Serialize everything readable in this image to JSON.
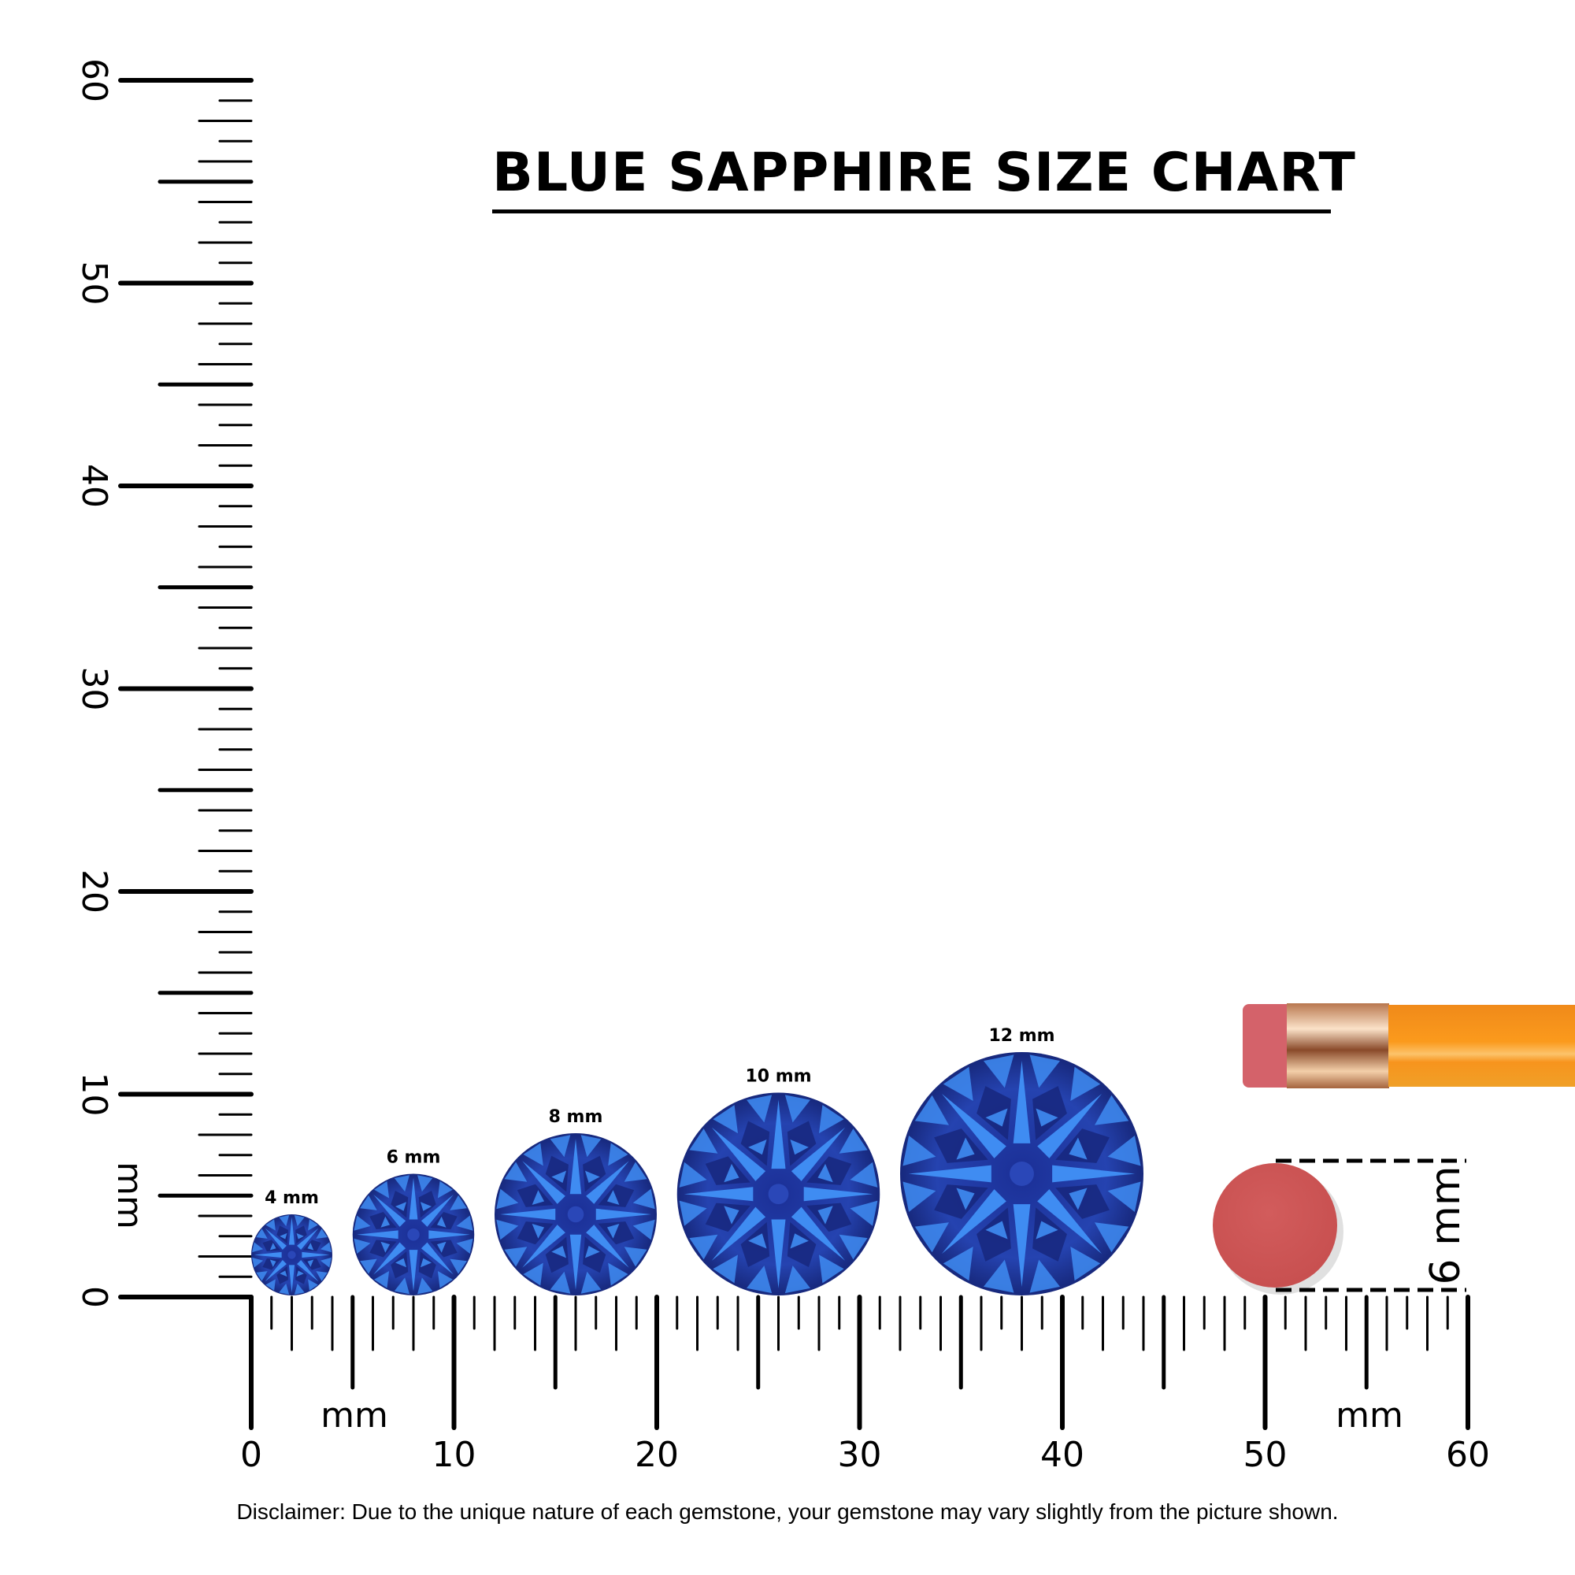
{
  "title": "BLUE SAPPHIRE SIZE CHART",
  "disclaimer": "Disclaimer: Due to the unique nature of each gemstone, your gemstone may vary slightly from the picture shown.",
  "chart_data": {
    "type": "scatter",
    "title": "BLUE SAPPHIRE SIZE CHART",
    "xlabel": "mm",
    "ylabel": "mm",
    "xlim": [
      0,
      60
    ],
    "ylim": [
      0,
      60
    ],
    "x_ticks": [
      "0",
      "10",
      "20",
      "30",
      "40",
      "50",
      "60"
    ],
    "y_ticks": [
      "0",
      "10",
      "20",
      "30",
      "40",
      "50",
      "60"
    ],
    "grid": false,
    "gems": [
      {
        "label": "4 mm",
        "diameter_mm": 4
      },
      {
        "label": "6 mm",
        "diameter_mm": 6
      },
      {
        "label": "8 mm",
        "diameter_mm": 8
      },
      {
        "label": "10 mm",
        "diameter_mm": 10
      },
      {
        "label": "12 mm",
        "diameter_mm": 12
      }
    ],
    "reference": {
      "label": "6 mm",
      "diameter_mm": 6,
      "object": "pencil eraser"
    }
  },
  "colors": {
    "gem_dark": "#16267a",
    "gem_mid": "#2a47b8",
    "gem_light": "#3f8cf2",
    "eraser": "#d05a5a",
    "pencil": "#f7941d",
    "ferrule": "#d9a07a"
  }
}
